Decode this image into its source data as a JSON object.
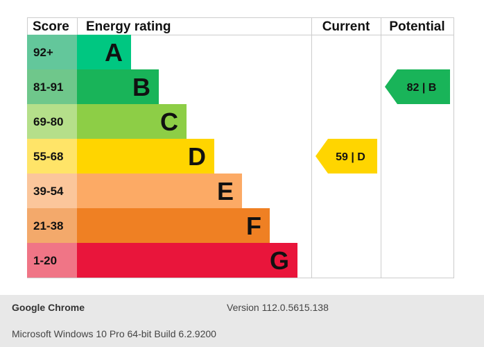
{
  "chart_data": {
    "type": "epc-energy-rating",
    "headers": {
      "score": "Score",
      "rating": "Energy rating",
      "current": "Current",
      "potential": "Potential"
    },
    "bands": [
      {
        "range": "92+",
        "letter": "A",
        "color": "#00c781",
        "light": "#63c79b"
      },
      {
        "range": "81-91",
        "letter": "B",
        "color": "#19b459",
        "light": "#6fc78b"
      },
      {
        "range": "69-80",
        "letter": "C",
        "color": "#8dce46",
        "light": "#b5df8a"
      },
      {
        "range": "55-68",
        "letter": "D",
        "color": "#ffd500",
        "light": "#ffe468"
      },
      {
        "range": "39-54",
        "letter": "E",
        "color": "#fcaa65",
        "light": "#fbc69b"
      },
      {
        "range": "21-38",
        "letter": "F",
        "color": "#ef8023",
        "light": "#f3a96b"
      },
      {
        "range": "1-20",
        "letter": "G",
        "color": "#e9153b",
        "light": "#f07586"
      }
    ],
    "current": {
      "value": 59,
      "letter": "D",
      "label": "59 | D",
      "color": "#ffd500"
    },
    "potential": {
      "value": 82,
      "letter": "B",
      "label": "82 | B",
      "color": "#19b459"
    }
  },
  "footer": {
    "browser": "Google Chrome",
    "version": "Version 112.0.5615.138",
    "os": "Microsoft Windows 10 Pro 64-bit Build 6.2.9200"
  }
}
